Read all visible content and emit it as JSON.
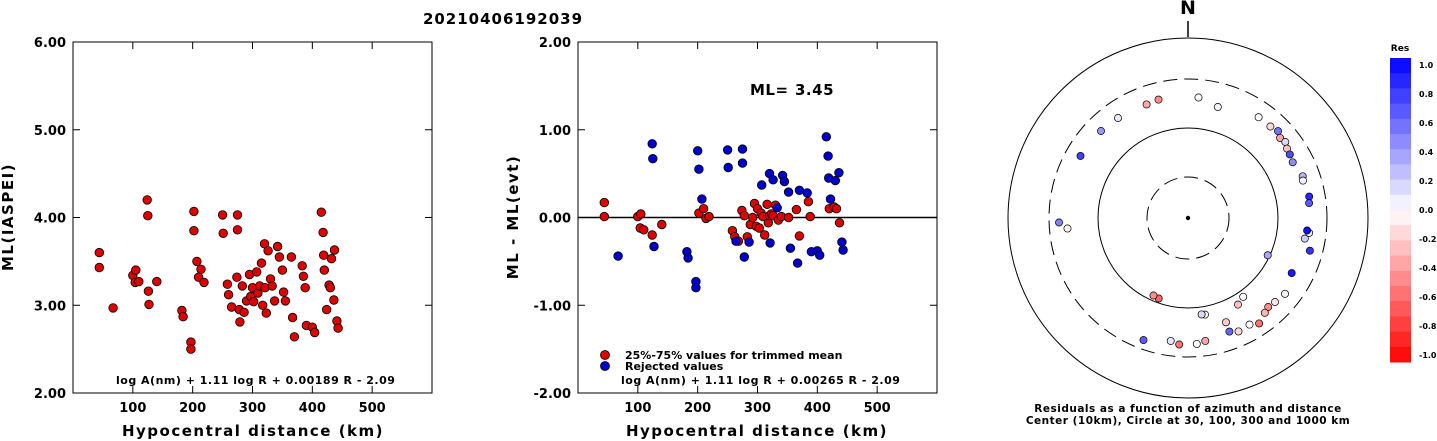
{
  "title": "20210406192039",
  "chart_data": [
    {
      "type": "scatter",
      "xlabel": "Hypocentral distance (km)",
      "ylabel": "ML(IASPEI)",
      "xlim": [
        0,
        600
      ],
      "ylim": [
        2.0,
        6.0
      ],
      "x_ticks": [
        "100",
        "200",
        "300",
        "400",
        "500"
      ],
      "y_ticks": [
        "2.00",
        "3.00",
        "4.00",
        "5.00",
        "6.00"
      ],
      "annotation": "log A(nm) + 1.11 log R + 0.00189 R - 2.09",
      "series": [
        {
          "color": "#dd0000",
          "points": [
            [
              44,
              3.6
            ],
            [
              44,
              3.43
            ],
            [
              67,
              2.97
            ],
            [
              100,
              3.34
            ],
            [
              104,
              3.26
            ],
            [
              105,
              3.4
            ],
            [
              110,
              3.27
            ],
            [
              124,
              4.2
            ],
            [
              125,
              4.02
            ],
            [
              126,
              3.16
            ],
            [
              127,
              3.01
            ],
            [
              140,
              3.27
            ],
            [
              182,
              2.94
            ],
            [
              184,
              2.87
            ],
            [
              197,
              2.58
            ],
            [
              197,
              2.5
            ],
            [
              202,
              4.07
            ],
            [
              202,
              3.85
            ],
            [
              207,
              3.5
            ],
            [
              210,
              3.32
            ],
            [
              214,
              3.41
            ],
            [
              219,
              3.26
            ],
            [
              250,
              4.03
            ],
            [
              251,
              3.82
            ],
            [
              258,
              3.24
            ],
            [
              260,
              3.12
            ],
            [
              265,
              2.98
            ],
            [
              274,
              3.32
            ],
            [
              275,
              4.03
            ],
            [
              275,
              3.86
            ],
            [
              278,
              2.95
            ],
            [
              279,
              2.81
            ],
            [
              283,
              3.22
            ],
            [
              286,
              2.92
            ],
            [
              290,
              3.05
            ],
            [
              295,
              3.35
            ],
            [
              297,
              3.1
            ],
            [
              300,
              3.2
            ],
            [
              302,
              3.04
            ],
            [
              307,
              3.38
            ],
            [
              309,
              3.14
            ],
            [
              312,
              3.22
            ],
            [
              315,
              3.48
            ],
            [
              317,
              3.0
            ],
            [
              320,
              3.7
            ],
            [
              321,
              3.2
            ],
            [
              323,
              2.91
            ],
            [
              326,
              3.62
            ],
            [
              330,
              3.3
            ],
            [
              333,
              3.22
            ],
            [
              337,
              3.05
            ],
            [
              342,
              3.67
            ],
            [
              345,
              3.55
            ],
            [
              350,
              3.4
            ],
            [
              352,
              3.15
            ],
            [
              355,
              3.05
            ],
            [
              365,
              3.55
            ],
            [
              367,
              2.86
            ],
            [
              370,
              2.64
            ],
            [
              383,
              3.45
            ],
            [
              385,
              3.33
            ],
            [
              388,
              3.2
            ],
            [
              390,
              2.77
            ],
            [
              400,
              2.75
            ],
            [
              404,
              2.69
            ],
            [
              415,
              4.06
            ],
            [
              418,
              3.83
            ],
            [
              419,
              3.57
            ],
            [
              420,
              3.4
            ],
            [
              424,
              2.95
            ],
            [
              428,
              3.23
            ],
            [
              430,
              3.2
            ],
            [
              432,
              3.53
            ],
            [
              436,
              3.06
            ],
            [
              437,
              3.63
            ],
            [
              441,
              2.82
            ],
            [
              443,
              2.74
            ]
          ]
        }
      ]
    },
    {
      "type": "scatter",
      "xlabel": "Hypocentral distance (km)",
      "ylabel": "ML - ML(evt)",
      "xlim": [
        0,
        600
      ],
      "ylim": [
        -2.0,
        2.0
      ],
      "x_ticks": [
        "100",
        "200",
        "300",
        "400",
        "500"
      ],
      "y_ticks": [
        "-2.00",
        "-1.00",
        "0.00",
        "1.00",
        "2.00"
      ],
      "reference_line": 0.0,
      "ml_label": "ML=",
      "ml_value": "3.45",
      "legend": [
        "25%-75% values for trimmed mean",
        "Rejected values"
      ],
      "annotation": "log A(nm) + 1.11 log R + 0.00265 R - 2.09",
      "series": [
        {
          "color": "#dd0000",
          "points": [
            [
              44,
              0.17
            ],
            [
              44,
              0.01
            ],
            [
              100,
              0.01
            ],
            [
              104,
              -0.12
            ],
            [
              105,
              0.04
            ],
            [
              110,
              -0.14
            ],
            [
              124,
              -0.2
            ],
            [
              140,
              -0.08
            ],
            [
              202,
              0.05
            ],
            [
              210,
              0.1
            ],
            [
              214,
              -0.01
            ],
            [
              219,
              0.01
            ],
            [
              258,
              -0.15
            ],
            [
              262,
              -0.22
            ],
            [
              268,
              -0.27
            ],
            [
              274,
              0.08
            ],
            [
              278,
              0.02
            ],
            [
              283,
              -0.22
            ],
            [
              288,
              -0.08
            ],
            [
              292,
              0.0
            ],
            [
              295,
              0.16
            ],
            [
              298,
              -0.1
            ],
            [
              300,
              0.1
            ],
            [
              303,
              -0.12
            ],
            [
              306,
              0.05
            ],
            [
              309,
              0.01
            ],
            [
              312,
              -0.2
            ],
            [
              316,
              0.15
            ],
            [
              318,
              -0.06
            ],
            [
              320,
              0.02
            ],
            [
              323,
              0.04
            ],
            [
              326,
              0.02
            ],
            [
              330,
              0.14
            ],
            [
              335,
              -0.03
            ],
            [
              340,
              0.01
            ],
            [
              352,
              0.0
            ],
            [
              365,
              0.09
            ],
            [
              370,
              -0.21
            ],
            [
              385,
              0.18
            ],
            [
              388,
              0.01
            ],
            [
              420,
              0.1
            ],
            [
              428,
              0.12
            ],
            [
              432,
              0.1
            ],
            [
              437,
              -0.06
            ]
          ]
        },
        {
          "color": "#0000cc",
          "points": [
            [
              67,
              -0.44
            ],
            [
              124,
              0.84
            ],
            [
              125,
              0.67
            ],
            [
              127,
              -0.33
            ],
            [
              182,
              -0.39
            ],
            [
              184,
              -0.46
            ],
            [
              197,
              -0.73
            ],
            [
              197,
              -0.8
            ],
            [
              200,
              0.76
            ],
            [
              202,
              0.55
            ],
            [
              207,
              0.21
            ],
            [
              250,
              0.77
            ],
            [
              251,
              0.57
            ],
            [
              264,
              -0.27
            ],
            [
              275,
              0.78
            ],
            [
              275,
              0.62
            ],
            [
              278,
              -0.45
            ],
            [
              286,
              -0.28
            ],
            [
              307,
              0.37
            ],
            [
              320,
              0.5
            ],
            [
              321,
              -0.29
            ],
            [
              326,
              0.43
            ],
            [
              333,
              0.11
            ],
            [
              342,
              0.48
            ],
            [
              345,
              0.41
            ],
            [
              352,
              0.29
            ],
            [
              355,
              -0.35
            ],
            [
              367,
              -0.52
            ],
            [
              370,
              0.31
            ],
            [
              383,
              0.28
            ],
            [
              390,
              -0.39
            ],
            [
              400,
              -0.38
            ],
            [
              404,
              -0.43
            ],
            [
              415,
              0.92
            ],
            [
              418,
              0.7
            ],
            [
              419,
              0.45
            ],
            [
              422,
              0.21
            ],
            [
              430,
              0.42
            ],
            [
              436,
              0.51
            ],
            [
              441,
              -0.28
            ],
            [
              443,
              -0.37
            ]
          ]
        }
      ]
    },
    {
      "type": "polar-scatter",
      "north_label": "N",
      "circles_km": [
        30,
        100,
        300,
        1000
      ],
      "caption_line1": "Residuals as a function of azimuth and distance",
      "caption_line2": "Center (10km), Circle at 30, 100, 300 and 1000 km",
      "colorbar_title": "Res",
      "colorbar_ticks": [
        "1.0",
        "0.8",
        "0.6",
        "0.4",
        "0.2",
        "0.0",
        "-0.2",
        "-0.4",
        "-0.6",
        "-0.8",
        "-1.0"
      ],
      "stations": [
        {
          "az": 15,
          "km": 175,
          "res": 0.05
        },
        {
          "az": 35,
          "km": 210,
          "res": -0.02
        },
        {
          "az": 42,
          "km": 210,
          "res": -0.15
        },
        {
          "az": 46,
          "km": 220,
          "res": 0.55
        },
        {
          "az": 49,
          "km": 205,
          "res": -0.35
        },
        {
          "az": 52,
          "km": 212,
          "res": 0.15
        },
        {
          "az": 55,
          "km": 200,
          "res": -0.25
        },
        {
          "az": 58,
          "km": 196,
          "res": 0.7
        },
        {
          "az": 62,
          "km": 190,
          "res": 0.45
        },
        {
          "az": 70,
          "km": 205,
          "res": 0.28
        },
        {
          "az": 72,
          "km": 200,
          "res": 0.05
        },
        {
          "az": 80,
          "km": 210,
          "res": 0.85
        },
        {
          "az": 83,
          "km": 205,
          "res": 0.65
        },
        {
          "az": 97,
          "km": 205,
          "res": 0.05
        },
        {
          "az": 105,
          "km": 225,
          "res": 0.8
        },
        {
          "az": 100,
          "km": 190,
          "res": 0.2
        },
        {
          "az": 128,
          "km": 210,
          "res": 0.05
        },
        {
          "az": 134,
          "km": 200,
          "res": -0.1
        },
        {
          "az": 138,
          "km": 195,
          "res": -0.45
        },
        {
          "az": 141,
          "km": 205,
          "res": -0.3
        },
        {
          "az": 146,
          "km": 230,
          "res": -0.55
        },
        {
          "az": 150,
          "km": 210,
          "res": 0.03
        },
        {
          "az": 156,
          "km": 215,
          "res": -0.15
        },
        {
          "az": 160,
          "km": 200,
          "res": 0.6
        },
        {
          "az": 172,
          "km": 215,
          "res": -0.35
        },
        {
          "az": 176,
          "km": 225,
          "res": 0.02
        },
        {
          "az": 184,
          "km": 228,
          "res": -0.55
        },
        {
          "az": 188,
          "km": 215,
          "res": 0.1
        },
        {
          "az": 200,
          "km": 245,
          "res": 0.65
        },
        {
          "az": 145,
          "km": 115,
          "res": 0.02
        },
        {
          "az": 150,
          "km": 125,
          "res": -0.25
        },
        {
          "az": 170,
          "km": 120,
          "res": -0.05
        },
        {
          "az": 172,
          "km": 118,
          "res": 0.15
        },
        {
          "az": 200,
          "km": 90,
          "res": -0.6
        },
        {
          "az": 204,
          "km": 88,
          "res": -0.45
        },
        {
          "az": 115,
          "km": 95,
          "res": 0.35
        },
        {
          "az": 268,
          "km": 240,
          "res": 0.5
        },
        {
          "az": 265,
          "km": 200,
          "res": -0.05
        },
        {
          "az": 300,
          "km": 215,
          "res": 0.75
        },
        {
          "az": 315,
          "km": 210,
          "res": 0.4
        },
        {
          "az": 325,
          "km": 205,
          "res": 0.08
        },
        {
          "az": 340,
          "km": 200,
          "res": -0.35
        },
        {
          "az": 346,
          "km": 205,
          "res": -0.45
        },
        {
          "az": 5,
          "km": 200,
          "res": 0.02
        },
        {
          "az": 118,
          "km": 185,
          "res": 0.9
        },
        {
          "az": 96,
          "km": 195,
          "res": 0.95
        },
        {
          "az": 160,
          "km": 160,
          "res": -0.2
        }
      ]
    }
  ]
}
